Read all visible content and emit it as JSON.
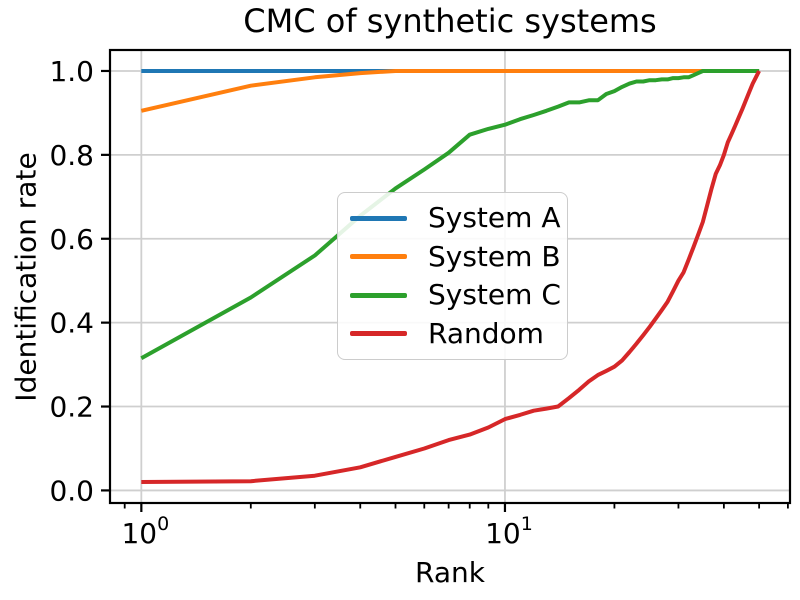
{
  "chart_data": {
    "type": "line",
    "title": "CMC of synthetic systems",
    "xlabel": "Rank",
    "ylabel": "Identification rate",
    "xscale": "log",
    "xlim": [
      0.82,
      60.8
    ],
    "ylim": [
      -0.03,
      1.05
    ],
    "grid": true,
    "legend_position": "center",
    "yticks": [
      0.0,
      0.2,
      0.4,
      0.6,
      0.8,
      1.0
    ],
    "ytick_labels": [
      "0.0",
      "0.2",
      "0.4",
      "0.6",
      "0.8",
      "1.0"
    ],
    "xticks_major": [
      {
        "value": 1,
        "label_base": "10",
        "label_exp": "0"
      },
      {
        "value": 10,
        "label_base": "10",
        "label_exp": "1"
      }
    ],
    "xticks_minor": [
      0.9,
      2,
      3,
      4,
      5,
      6,
      7,
      8,
      9,
      20,
      30,
      40,
      50,
      60
    ],
    "x": [
      1,
      2,
      3,
      4,
      5,
      6,
      7,
      8,
      9,
      10,
      11,
      12,
      13,
      14,
      15,
      16,
      17,
      18,
      19,
      20,
      21,
      22,
      23,
      24,
      25,
      26,
      27,
      28,
      29,
      30,
      31,
      32,
      33,
      34,
      35,
      36,
      37,
      38,
      39,
      40,
      41,
      42,
      43,
      44,
      45,
      46,
      47,
      48,
      49,
      50
    ],
    "series": [
      {
        "name": "System A",
        "color": "#1f77b4",
        "values": [
          1.0,
          1.0,
          1.0,
          1.0,
          1.0,
          1.0,
          1.0,
          1.0,
          1.0,
          1.0,
          1.0,
          1.0,
          1.0,
          1.0,
          1.0,
          1.0,
          1.0,
          1.0,
          1.0,
          1.0,
          1.0,
          1.0,
          1.0,
          1.0,
          1.0,
          1.0,
          1.0,
          1.0,
          1.0,
          1.0,
          1.0,
          1.0,
          1.0,
          1.0,
          1.0,
          1.0,
          1.0,
          1.0,
          1.0,
          1.0,
          1.0,
          1.0,
          1.0,
          1.0,
          1.0,
          1.0,
          1.0,
          1.0,
          1.0,
          1.0
        ]
      },
      {
        "name": "System B",
        "color": "#ff7f0e",
        "values": [
          0.905,
          0.965,
          0.985,
          0.995,
          1.0,
          1.0,
          1.0,
          1.0,
          1.0,
          1.0,
          1.0,
          1.0,
          1.0,
          1.0,
          1.0,
          1.0,
          1.0,
          1.0,
          1.0,
          1.0,
          1.0,
          1.0,
          1.0,
          1.0,
          1.0,
          1.0,
          1.0,
          1.0,
          1.0,
          1.0,
          1.0,
          1.0,
          1.0,
          1.0,
          1.0,
          1.0,
          1.0,
          1.0,
          1.0,
          1.0,
          1.0,
          1.0,
          1.0,
          1.0,
          1.0,
          1.0,
          1.0,
          1.0,
          1.0,
          1.0
        ]
      },
      {
        "name": "System C",
        "color": "#2ca02c",
        "values": [
          0.315,
          0.46,
          0.56,
          0.655,
          0.72,
          0.765,
          0.805,
          0.848,
          0.862,
          0.872,
          0.885,
          0.895,
          0.905,
          0.915,
          0.925,
          0.925,
          0.93,
          0.93,
          0.945,
          0.952,
          0.962,
          0.97,
          0.975,
          0.975,
          0.978,
          0.978,
          0.98,
          0.98,
          0.983,
          0.983,
          0.985,
          0.985,
          0.99,
          0.995,
          1.0,
          1.0,
          1.0,
          1.0,
          1.0,
          1.0,
          1.0,
          1.0,
          1.0,
          1.0,
          1.0,
          1.0,
          1.0,
          1.0,
          1.0,
          1.0
        ]
      },
      {
        "name": "Random",
        "color": "#d62728",
        "values": [
          0.02,
          0.022,
          0.035,
          0.055,
          0.08,
          0.1,
          0.12,
          0.133,
          0.15,
          0.17,
          0.18,
          0.19,
          0.195,
          0.2,
          0.22,
          0.24,
          0.26,
          0.275,
          0.285,
          0.295,
          0.31,
          0.33,
          0.35,
          0.37,
          0.39,
          0.41,
          0.43,
          0.45,
          0.475,
          0.5,
          0.52,
          0.55,
          0.58,
          0.61,
          0.64,
          0.68,
          0.72,
          0.755,
          0.775,
          0.8,
          0.83,
          0.85,
          0.87,
          0.89,
          0.91,
          0.93,
          0.95,
          0.97,
          0.985,
          1.0
        ]
      }
    ],
    "style": {
      "grid_color": "#cfcfcf",
      "spine_color": "#000000",
      "tick_color": "#000000",
      "line_width": 4
    }
  }
}
